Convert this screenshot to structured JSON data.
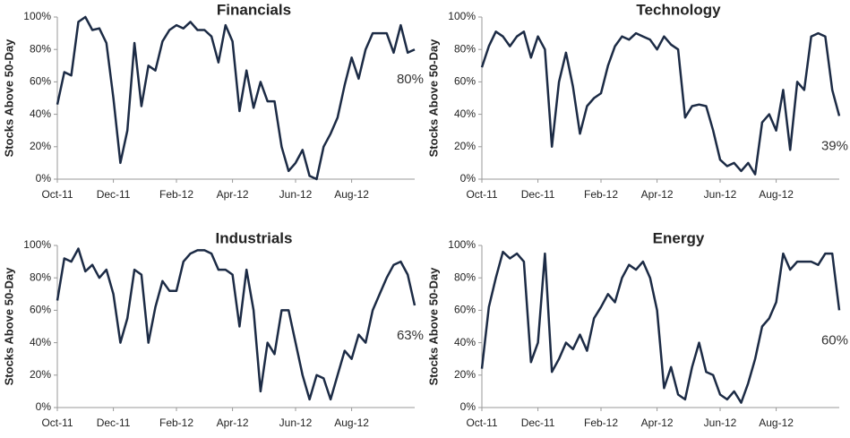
{
  "chart_data": [
    {
      "type": "line",
      "title": "Financials",
      "y_label": "Stocks Above 50-Day",
      "color": "#1c2b45",
      "annotation": "80%",
      "categories": [
        "Oct-11",
        null,
        null,
        null,
        null,
        null,
        null,
        null,
        "Dec-11",
        null,
        null,
        null,
        null,
        null,
        null,
        null,
        null,
        "Feb-12",
        null,
        null,
        null,
        null,
        null,
        null,
        null,
        "Apr-12",
        null,
        null,
        null,
        null,
        null,
        null,
        null,
        null,
        "Jun-12",
        null,
        null,
        null,
        null,
        null,
        null,
        null,
        "Aug-12",
        null,
        null,
        null,
        null,
        null,
        null,
        null,
        null,
        null
      ],
      "values": [
        46,
        66,
        64,
        97,
        100,
        92,
        93,
        84,
        50,
        10,
        30,
        84,
        45,
        70,
        67,
        85,
        92,
        95,
        93,
        97,
        92,
        92,
        88,
        72,
        95,
        85,
        42,
        67,
        44,
        60,
        48,
        48,
        20,
        5,
        10,
        18,
        2,
        0,
        20,
        28,
        38,
        58,
        75,
        62,
        80,
        90,
        90,
        90,
        78,
        95,
        78,
        80
      ],
      "ylim": [
        0,
        100
      ],
      "yticks": [
        {
          "value": 0,
          "label": "0%"
        },
        {
          "value": 20,
          "label": "20%"
        },
        {
          "value": 40,
          "label": "40%"
        },
        {
          "value": 60,
          "label": "60%"
        },
        {
          "value": 80,
          "label": "80%"
        },
        {
          "value": 100,
          "label": "100%"
        }
      ]
    },
    {
      "type": "line",
      "title": "Technology",
      "y_label": "Stocks Above 50-Day",
      "color": "#1c2b45",
      "annotation": "39%",
      "categories": [
        "Oct-11",
        null,
        null,
        null,
        null,
        null,
        null,
        null,
        "Dec-11",
        null,
        null,
        null,
        null,
        null,
        null,
        null,
        null,
        "Feb-12",
        null,
        null,
        null,
        null,
        null,
        null,
        null,
        "Apr-12",
        null,
        null,
        null,
        null,
        null,
        null,
        null,
        null,
        "Jun-12",
        null,
        null,
        null,
        null,
        null,
        null,
        null,
        "Aug-12",
        null,
        null,
        null,
        null,
        null,
        null,
        null,
        null,
        null
      ],
      "values": [
        69,
        82,
        91,
        88,
        82,
        88,
        91,
        75,
        88,
        80,
        20,
        60,
        78,
        57,
        28,
        45,
        50,
        53,
        70,
        82,
        88,
        86,
        90,
        88,
        86,
        80,
        88,
        83,
        80,
        38,
        45,
        46,
        45,
        30,
        12,
        8,
        10,
        5,
        10,
        3,
        35,
        40,
        30,
        55,
        18,
        60,
        55,
        88,
        90,
        88,
        55,
        39
      ],
      "ylim": [
        0,
        100
      ],
      "yticks": [
        {
          "value": 0,
          "label": "0%"
        },
        {
          "value": 20,
          "label": "20%"
        },
        {
          "value": 40,
          "label": "40%"
        },
        {
          "value": 60,
          "label": "60%"
        },
        {
          "value": 80,
          "label": "80%"
        },
        {
          "value": 100,
          "label": "100%"
        }
      ]
    },
    {
      "type": "line",
      "title": "Industrials",
      "y_label": "Stocks Above 50-Day",
      "color": "#1c2b45",
      "annotation": "63%",
      "categories": [
        "Oct-11",
        null,
        null,
        null,
        null,
        null,
        null,
        null,
        "Dec-11",
        null,
        null,
        null,
        null,
        null,
        null,
        null,
        null,
        "Feb-12",
        null,
        null,
        null,
        null,
        null,
        null,
        null,
        "Apr-12",
        null,
        null,
        null,
        null,
        null,
        null,
        null,
        null,
        "Jun-12",
        null,
        null,
        null,
        null,
        null,
        null,
        null,
        "Aug-12",
        null,
        null,
        null,
        null,
        null,
        null,
        null,
        null,
        null
      ],
      "values": [
        66,
        92,
        90,
        98,
        84,
        88,
        80,
        85,
        70,
        40,
        55,
        85,
        82,
        40,
        62,
        78,
        72,
        72,
        90,
        95,
        97,
        97,
        95,
        85,
        85,
        82,
        50,
        85,
        60,
        10,
        40,
        33,
        60,
        60,
        40,
        20,
        5,
        20,
        18,
        5,
        20,
        35,
        30,
        45,
        40,
        60,
        70,
        80,
        88,
        90,
        82,
        63
      ],
      "ylim": [
        0,
        100
      ],
      "yticks": [
        {
          "value": 0,
          "label": "0%"
        },
        {
          "value": 20,
          "label": "20%"
        },
        {
          "value": 40,
          "label": "40%"
        },
        {
          "value": 60,
          "label": "60%"
        },
        {
          "value": 80,
          "label": "80%"
        },
        {
          "value": 100,
          "label": "100%"
        }
      ]
    },
    {
      "type": "line",
      "title": "Energy",
      "y_label": "Stocks Above 50-Day",
      "color": "#1c2b45",
      "annotation": "60%",
      "categories": [
        "Oct-11",
        null,
        null,
        null,
        null,
        null,
        null,
        null,
        "Dec-11",
        null,
        null,
        null,
        null,
        null,
        null,
        null,
        null,
        "Feb-12",
        null,
        null,
        null,
        null,
        null,
        null,
        null,
        "Apr-12",
        null,
        null,
        null,
        null,
        null,
        null,
        null,
        null,
        "Jun-12",
        null,
        null,
        null,
        null,
        null,
        null,
        null,
        "Aug-12",
        null,
        null,
        null,
        null,
        null,
        null,
        null,
        null,
        null
      ],
      "values": [
        24,
        62,
        80,
        96,
        92,
        95,
        90,
        28,
        40,
        95,
        22,
        30,
        40,
        36,
        45,
        35,
        55,
        62,
        70,
        65,
        80,
        88,
        85,
        90,
        80,
        60,
        12,
        25,
        8,
        5,
        25,
        40,
        22,
        20,
        8,
        5,
        10,
        3,
        15,
        30,
        50,
        55,
        65,
        95,
        85,
        90,
        90,
        90,
        88,
        95,
        95,
        60
      ],
      "ylim": [
        0,
        100
      ],
      "yticks": [
        {
          "value": 0,
          "label": "0%"
        },
        {
          "value": 20,
          "label": "20%"
        },
        {
          "value": 40,
          "label": "40%"
        },
        {
          "value": 60,
          "label": "60%"
        },
        {
          "value": 80,
          "label": "80%"
        },
        {
          "value": 100,
          "label": "100%"
        }
      ]
    }
  ]
}
